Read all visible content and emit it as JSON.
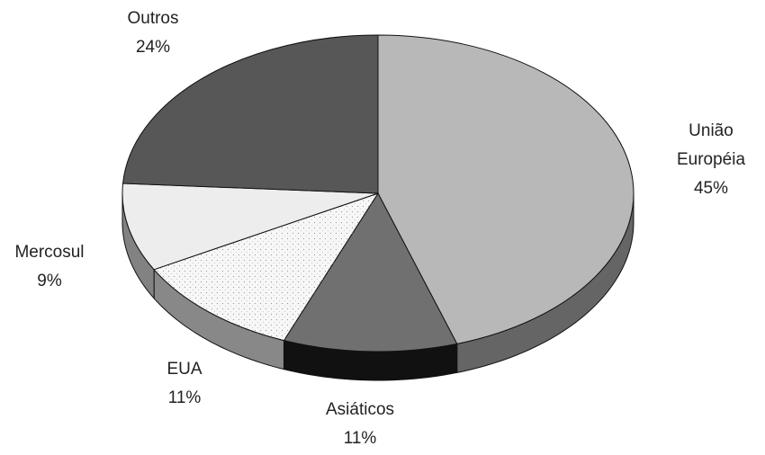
{
  "chart_data": {
    "type": "pie",
    "categories": [
      "União Européia",
      "Asiáticos",
      "EUA",
      "Mercosul",
      "Outros"
    ],
    "values": [
      45,
      11,
      11,
      9,
      24
    ],
    "value_labels": [
      "45%",
      "11%",
      "11%",
      "9%",
      "24%"
    ],
    "colors": [
      "#b8b8b8",
      "#707070",
      "#f7f7f7",
      "#ededed",
      "#575757"
    ]
  }
}
